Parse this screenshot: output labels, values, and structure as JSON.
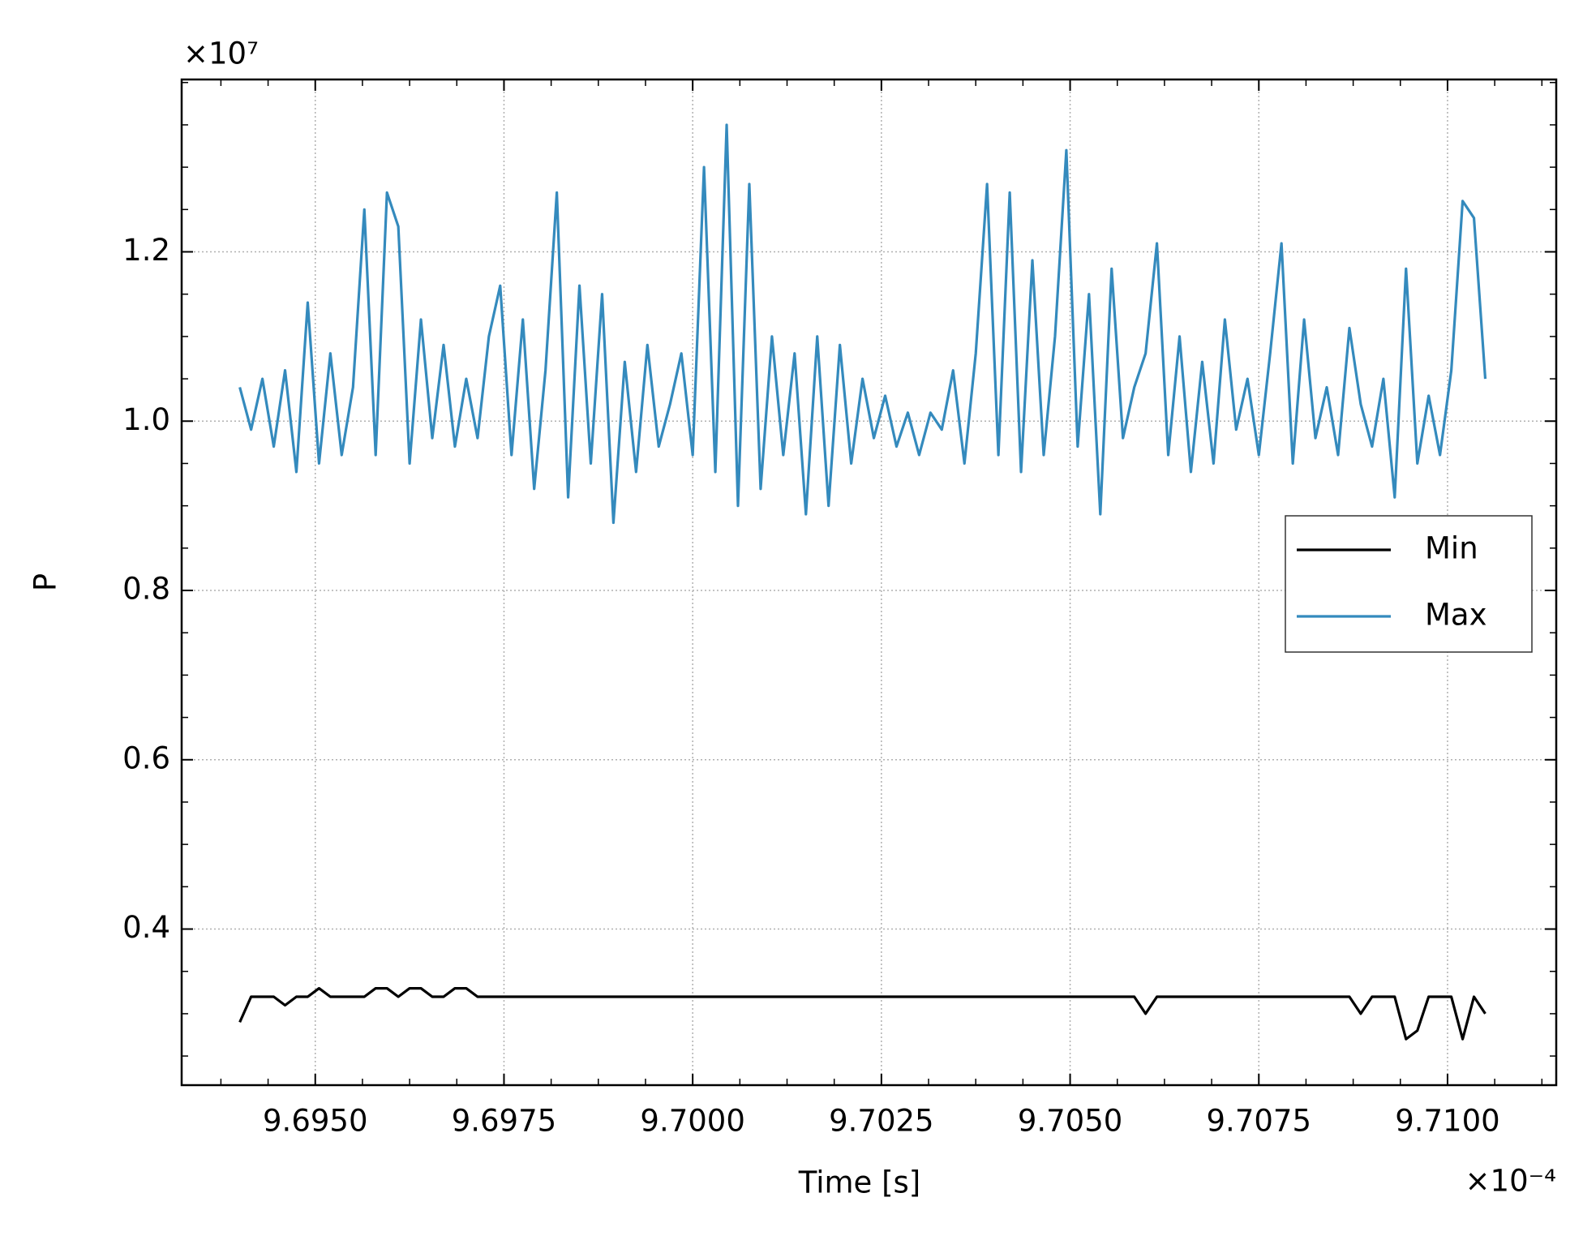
{
  "chart_data": {
    "type": "line",
    "xlabel": "Time [s]",
    "ylabel": "P",
    "x_offset_label": "×10⁻⁴",
    "y_offset_label": "×10⁷",
    "xlim": [
      9.69323,
      9.71144
    ],
    "ylim": [
      0.2156,
      1.4036
    ],
    "xticks": [
      {
        "value": 9.695,
        "label": "9.6950"
      },
      {
        "value": 9.6975,
        "label": "9.6975"
      },
      {
        "value": 9.7,
        "label": "9.7000"
      },
      {
        "value": 9.7025,
        "label": "9.7025"
      },
      {
        "value": 9.705,
        "label": "9.7050"
      },
      {
        "value": 9.7075,
        "label": "9.7075"
      },
      {
        "value": 9.71,
        "label": "9.7100"
      }
    ],
    "yticks": [
      0.4,
      0.6,
      0.8,
      {
        "value": 1,
        "label": "1.0"
      },
      1.2
    ],
    "xminorticks": [
      9.69375,
      9.694375,
      9.695625,
      9.69625,
      9.696875,
      9.698125,
      9.69875,
      9.699375,
      9.700625,
      9.70125,
      9.701875,
      9.703125,
      9.70375,
      9.704375,
      9.705625,
      9.70625,
      9.706875,
      9.708125,
      9.70875,
      9.709375,
      9.710625,
      9.71125
    ],
    "yminorticks": [
      0.25,
      0.3,
      0.35,
      0.45,
      0.5,
      0.55,
      0.65,
      0.7,
      0.75,
      0.85,
      0.9,
      0.95,
      1.05,
      1.1,
      1.15,
      1.25,
      1.3,
      1.35,
      1.4
    ],
    "grid": true,
    "legend": "center right",
    "x": [
      9.694,
      9.69415,
      9.6943,
      9.69445,
      9.6946,
      9.69475,
      9.6949,
      9.69505,
      9.6952,
      9.69535,
      9.6955,
      9.69565,
      9.6958,
      9.69595,
      9.6961,
      9.69625,
      9.6964,
      9.69655,
      9.6967,
      9.69685,
      9.697,
      9.69715,
      9.6973,
      9.69745,
      9.6976,
      9.69775,
      9.6979,
      9.69805,
      9.6982,
      9.69835,
      9.6985,
      9.69865,
      9.6988,
      9.69895,
      9.6991,
      9.69925,
      9.6994,
      9.69955,
      9.6997,
      9.69985,
      9.7,
      9.70015,
      9.7003,
      9.70045,
      9.7006,
      9.70075,
      9.7009,
      9.70105,
      9.7012,
      9.70135,
      9.7015,
      9.70165,
      9.7018,
      9.70195,
      9.7021,
      9.70225,
      9.7024,
      9.70255,
      9.7027,
      9.70285,
      9.703,
      9.70315,
      9.7033,
      9.70345,
      9.7036,
      9.70375,
      9.7039,
      9.70405,
      9.7042,
      9.70435,
      9.7045,
      9.70465,
      9.7048,
      9.70495,
      9.7051,
      9.70525,
      9.7054,
      9.70555,
      9.7057,
      9.70585,
      9.706,
      9.70615,
      9.7063,
      9.70645,
      9.7066,
      9.70675,
      9.7069,
      9.70705,
      9.7072,
      9.70735,
      9.7075,
      9.70765,
      9.7078,
      9.70795,
      9.7081,
      9.70825,
      9.7084,
      9.70855,
      9.7087,
      9.70885,
      9.709,
      9.70915,
      9.7093,
      9.70945,
      9.7096,
      9.70975,
      9.7099,
      9.71005,
      9.7102,
      9.71035,
      9.7105
    ],
    "series": [
      {
        "name": "Min",
        "color": "#000000",
        "values": [
          0.29,
          0.32,
          0.32,
          0.32,
          0.31,
          0.32,
          0.32,
          0.33,
          0.32,
          0.32,
          0.32,
          0.32,
          0.33,
          0.33,
          0.32,
          0.33,
          0.33,
          0.32,
          0.32,
          0.33,
          0.33,
          0.32,
          0.32,
          0.32,
          0.32,
          0.32,
          0.32,
          0.32,
          0.32,
          0.32,
          0.32,
          0.32,
          0.32,
          0.32,
          0.32,
          0.32,
          0.32,
          0.32,
          0.32,
          0.32,
          0.32,
          0.32,
          0.32,
          0.32,
          0.32,
          0.32,
          0.32,
          0.32,
          0.32,
          0.32,
          0.32,
          0.32,
          0.32,
          0.32,
          0.32,
          0.32,
          0.32,
          0.32,
          0.32,
          0.32,
          0.32,
          0.32,
          0.32,
          0.32,
          0.32,
          0.32,
          0.32,
          0.32,
          0.32,
          0.32,
          0.32,
          0.32,
          0.32,
          0.32,
          0.32,
          0.32,
          0.32,
          0.32,
          0.32,
          0.32,
          0.3,
          0.32,
          0.32,
          0.32,
          0.32,
          0.32,
          0.32,
          0.32,
          0.32,
          0.32,
          0.32,
          0.32,
          0.32,
          0.32,
          0.32,
          0.32,
          0.32,
          0.32,
          0.32,
          0.3,
          0.32,
          0.32,
          0.32,
          0.27,
          0.28,
          0.32,
          0.32,
          0.32,
          0.27,
          0.32,
          0.3
        ]
      },
      {
        "name": "Max",
        "color": "#348abd",
        "values": [
          1.04,
          0.99,
          1.05,
          0.97,
          1.06,
          0.94,
          1.14,
          0.95,
          1.08,
          0.96,
          1.04,
          1.25,
          0.96,
          1.27,
          1.23,
          0.95,
          1.12,
          0.98,
          1.09,
          0.97,
          1.05,
          0.98,
          1.1,
          1.16,
          0.96,
          1.12,
          0.92,
          1.06,
          1.27,
          0.91,
          1.16,
          0.95,
          1.15,
          0.88,
          1.07,
          0.94,
          1.09,
          0.97,
          1.02,
          1.08,
          0.96,
          1.3,
          0.94,
          1.35,
          0.9,
          1.28,
          0.92,
          1.1,
          0.96,
          1.08,
          0.89,
          1.1,
          0.9,
          1.09,
          0.95,
          1.05,
          0.98,
          1.03,
          0.97,
          1.01,
          0.96,
          1.01,
          0.99,
          1.06,
          0.95,
          1.08,
          1.28,
          0.96,
          1.27,
          0.94,
          1.19,
          0.96,
          1.1,
          1.32,
          0.97,
          1.15,
          0.89,
          1.18,
          0.98,
          1.04,
          1.08,
          1.21,
          0.96,
          1.1,
          0.94,
          1.07,
          0.95,
          1.12,
          0.99,
          1.05,
          0.96,
          1.08,
          1.21,
          0.95,
          1.12,
          0.98,
          1.04,
          0.96,
          1.11,
          1.02,
          0.97,
          1.05,
          0.91,
          1.18,
          0.95,
          1.03,
          0.96,
          1.06,
          1.26,
          1.24,
          1.05
        ]
      }
    ]
  }
}
